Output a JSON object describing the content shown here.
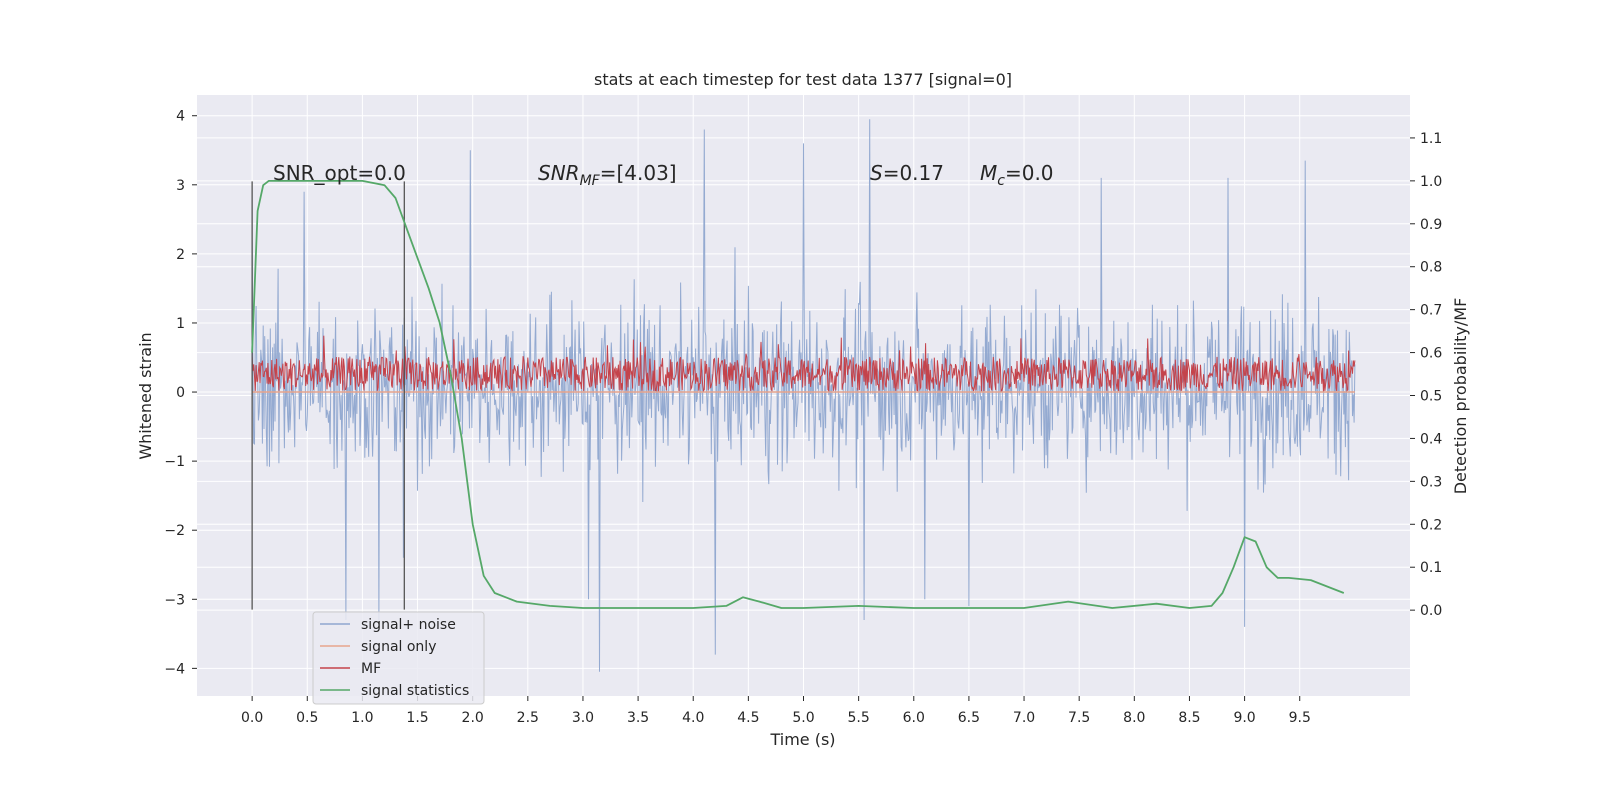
{
  "chart_data": {
    "type": "line",
    "title": "stats at each timestep for test data 1377 [signal=0]",
    "xlabel": "Time (s)",
    "ylabel": "Whitened strain",
    "y2label": "Detection probability/MF",
    "xlim": [
      -0.5,
      10.5
    ],
    "ylim": [
      -4.4,
      4.3
    ],
    "y2lim": [
      -0.2,
      1.2
    ],
    "xticks": [
      0.0,
      0.5,
      1.0,
      1.5,
      2.0,
      2.5,
      3.0,
      3.5,
      4.0,
      4.5,
      5.0,
      5.5,
      6.0,
      6.5,
      7.0,
      7.5,
      8.0,
      8.5,
      9.0,
      9.5
    ],
    "xtick_labels": [
      "0.0",
      "0.5",
      "1.0",
      "1.5",
      "2.0",
      "2.5",
      "3.0",
      "3.5",
      "4.0",
      "4.5",
      "5.0",
      "5.5",
      "6.0",
      "6.5",
      "7.0",
      "7.5",
      "8.0",
      "8.5",
      "9.0",
      "9.5"
    ],
    "yticks": [
      -4,
      -3,
      -2,
      -1,
      0,
      1,
      2,
      3,
      4
    ],
    "ytick_labels": [
      "−4",
      "−3",
      "−2",
      "−1",
      "0",
      "1",
      "2",
      "3",
      "4"
    ],
    "y2ticks": [
      0.0,
      0.1,
      0.2,
      0.3,
      0.4,
      0.5,
      0.6,
      0.7,
      0.8,
      0.9,
      1.0,
      1.1
    ],
    "y2tick_labels": [
      "0.0",
      "0.1",
      "0.2",
      "0.3",
      "0.4",
      "0.5",
      "0.6",
      "0.7",
      "0.8",
      "0.9",
      "1.0",
      "1.1"
    ],
    "grid": true,
    "legend_position": "bottom-left",
    "annotations": {
      "snr_opt": "SNR_opt=0.0",
      "snr_mf_base": "SNR",
      "snr_mf_sub": "MF",
      "snr_mf_rest": "=[4.03]",
      "s_label": "S",
      "s_rest": "=0.17",
      "mc_base": "M",
      "mc_sub": "c",
      "mc_rest": "=0.0"
    },
    "markers": {
      "x": [
        0.0,
        1.38
      ],
      "y_range": [
        -3.15,
        3.05
      ]
    },
    "series": [
      {
        "name": "signal+ noise",
        "axis": "left",
        "color": "#8fa6cf",
        "x_range": [
          0.0,
          10.0
        ],
        "typical_range": [
          -1.4,
          1.6
        ],
        "extremes": [
          [
            0.0,
            2.2
          ],
          [
            0.47,
            2.9
          ],
          [
            0.85,
            -3.3
          ],
          [
            1.15,
            -3.3
          ],
          [
            1.37,
            -2.4
          ],
          [
            1.98,
            3.5
          ],
          [
            3.15,
            -4.05
          ],
          [
            3.05,
            -3.0
          ],
          [
            4.1,
            3.8
          ],
          [
            4.2,
            -3.8
          ],
          [
            5.0,
            3.6
          ],
          [
            5.6,
            3.95
          ],
          [
            5.55,
            -3.3
          ],
          [
            6.1,
            -3.0
          ],
          [
            6.5,
            -3.1
          ],
          [
            7.7,
            3.1
          ],
          [
            8.85,
            3.1
          ],
          [
            9.0,
            -3.4
          ],
          [
            9.55,
            3.35
          ]
        ]
      },
      {
        "name": "signal only",
        "axis": "left",
        "color": "#e8a48c",
        "x": [
          0.0,
          10.0
        ],
        "y": [
          0.0,
          0.0
        ]
      },
      {
        "name": "MF",
        "axis": "right",
        "color": "#c4434b",
        "x_range": [
          0.0,
          10.0
        ],
        "typical_range": [
          0.51,
          0.59
        ],
        "peak": 0.64
      },
      {
        "name": "signal statistics",
        "axis": "right",
        "color": "#55a868",
        "x": [
          0.0,
          0.05,
          0.1,
          0.15,
          0.25,
          0.5,
          1.0,
          1.2,
          1.3,
          1.4,
          1.5,
          1.6,
          1.7,
          1.8,
          1.9,
          2.0,
          2.1,
          2.2,
          2.4,
          2.7,
          3.0,
          3.5,
          4.0,
          4.3,
          4.45,
          4.6,
          4.8,
          5.0,
          5.5,
          6.0,
          6.5,
          7.0,
          7.4,
          7.8,
          8.2,
          8.5,
          8.7,
          8.8,
          8.9,
          9.0,
          9.1,
          9.2,
          9.3,
          9.4,
          9.6,
          9.9
        ],
        "y": [
          0.6,
          0.93,
          0.99,
          1.0,
          1.0,
          1.0,
          1.0,
          0.99,
          0.96,
          0.89,
          0.82,
          0.75,
          0.67,
          0.55,
          0.4,
          0.2,
          0.08,
          0.04,
          0.02,
          0.01,
          0.005,
          0.005,
          0.005,
          0.01,
          0.03,
          0.02,
          0.005,
          0.005,
          0.01,
          0.005,
          0.005,
          0.005,
          0.02,
          0.005,
          0.015,
          0.005,
          0.01,
          0.04,
          0.1,
          0.17,
          0.16,
          0.1,
          0.075,
          0.075,
          0.07,
          0.04
        ]
      }
    ]
  }
}
